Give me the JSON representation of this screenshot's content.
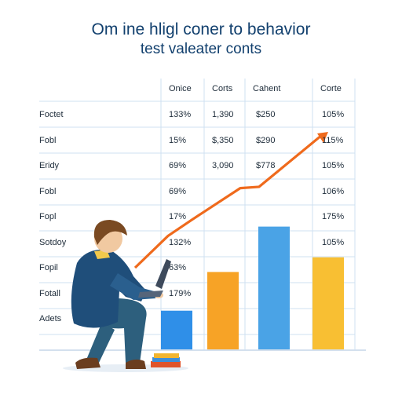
{
  "title": {
    "line1": "Om ine hligl coner to behavior",
    "line2": "test valeater conts"
  },
  "table": {
    "headers": [
      "Onice",
      "Corts",
      "Cahent",
      "Corte"
    ],
    "rows": [
      {
        "label": "Foctet",
        "c1": "133%",
        "c2": "1,390",
        "c3": "$250",
        "c4": "105%"
      },
      {
        "label": "Fobl",
        "c1": "15%",
        "c2": "$,350",
        "c3": "$290",
        "c4": "115%"
      },
      {
        "label": "Eridy",
        "c1": "69%",
        "c2": "3,090",
        "c3": "$778",
        "c4": "105%"
      },
      {
        "label": "Fobl",
        "c1": "69%",
        "c2": "",
        "c3": "",
        "c4": "106%"
      },
      {
        "label": "Fopl",
        "c1": "17%",
        "c2": "",
        "c3": "",
        "c4": "175%"
      },
      {
        "label": "Sotdoy",
        "c1": "132%",
        "c2": "",
        "c3": "",
        "c4": "105%"
      },
      {
        "label": "Fopil",
        "c1": "63%",
        "c2": "",
        "c3": "",
        "c4": ""
      },
      {
        "label": "Fotall",
        "c1": "179%",
        "c2": "",
        "c3": "",
        "c4": ""
      },
      {
        "label": "Adets",
        "c1": "",
        "c2": "",
        "c3": "",
        "c4": ""
      }
    ]
  },
  "bars": [
    {
      "value": 0.29,
      "color": "#2f8fe8"
    },
    {
      "value": 0.58,
      "color": "#f7a326"
    },
    {
      "value": 0.92,
      "color": "#4aa3e6"
    },
    {
      "value": 0.69,
      "color": "#f8bf33"
    }
  ],
  "trend": {
    "color": "#ef6a1c",
    "points": [
      0.0,
      0.24,
      0.36,
      0.6,
      0.61,
      1.0
    ]
  },
  "colors": {
    "title": "#12406e",
    "grid": "#cfe0f2",
    "person_sweater": "#1f4e7a",
    "person_pants": "#2d5f7d",
    "hair": "#7a4a22",
    "laptop": "#3d4a5c",
    "books": [
      "#e0542b",
      "#3e8fd8",
      "#f2b530"
    ]
  }
}
